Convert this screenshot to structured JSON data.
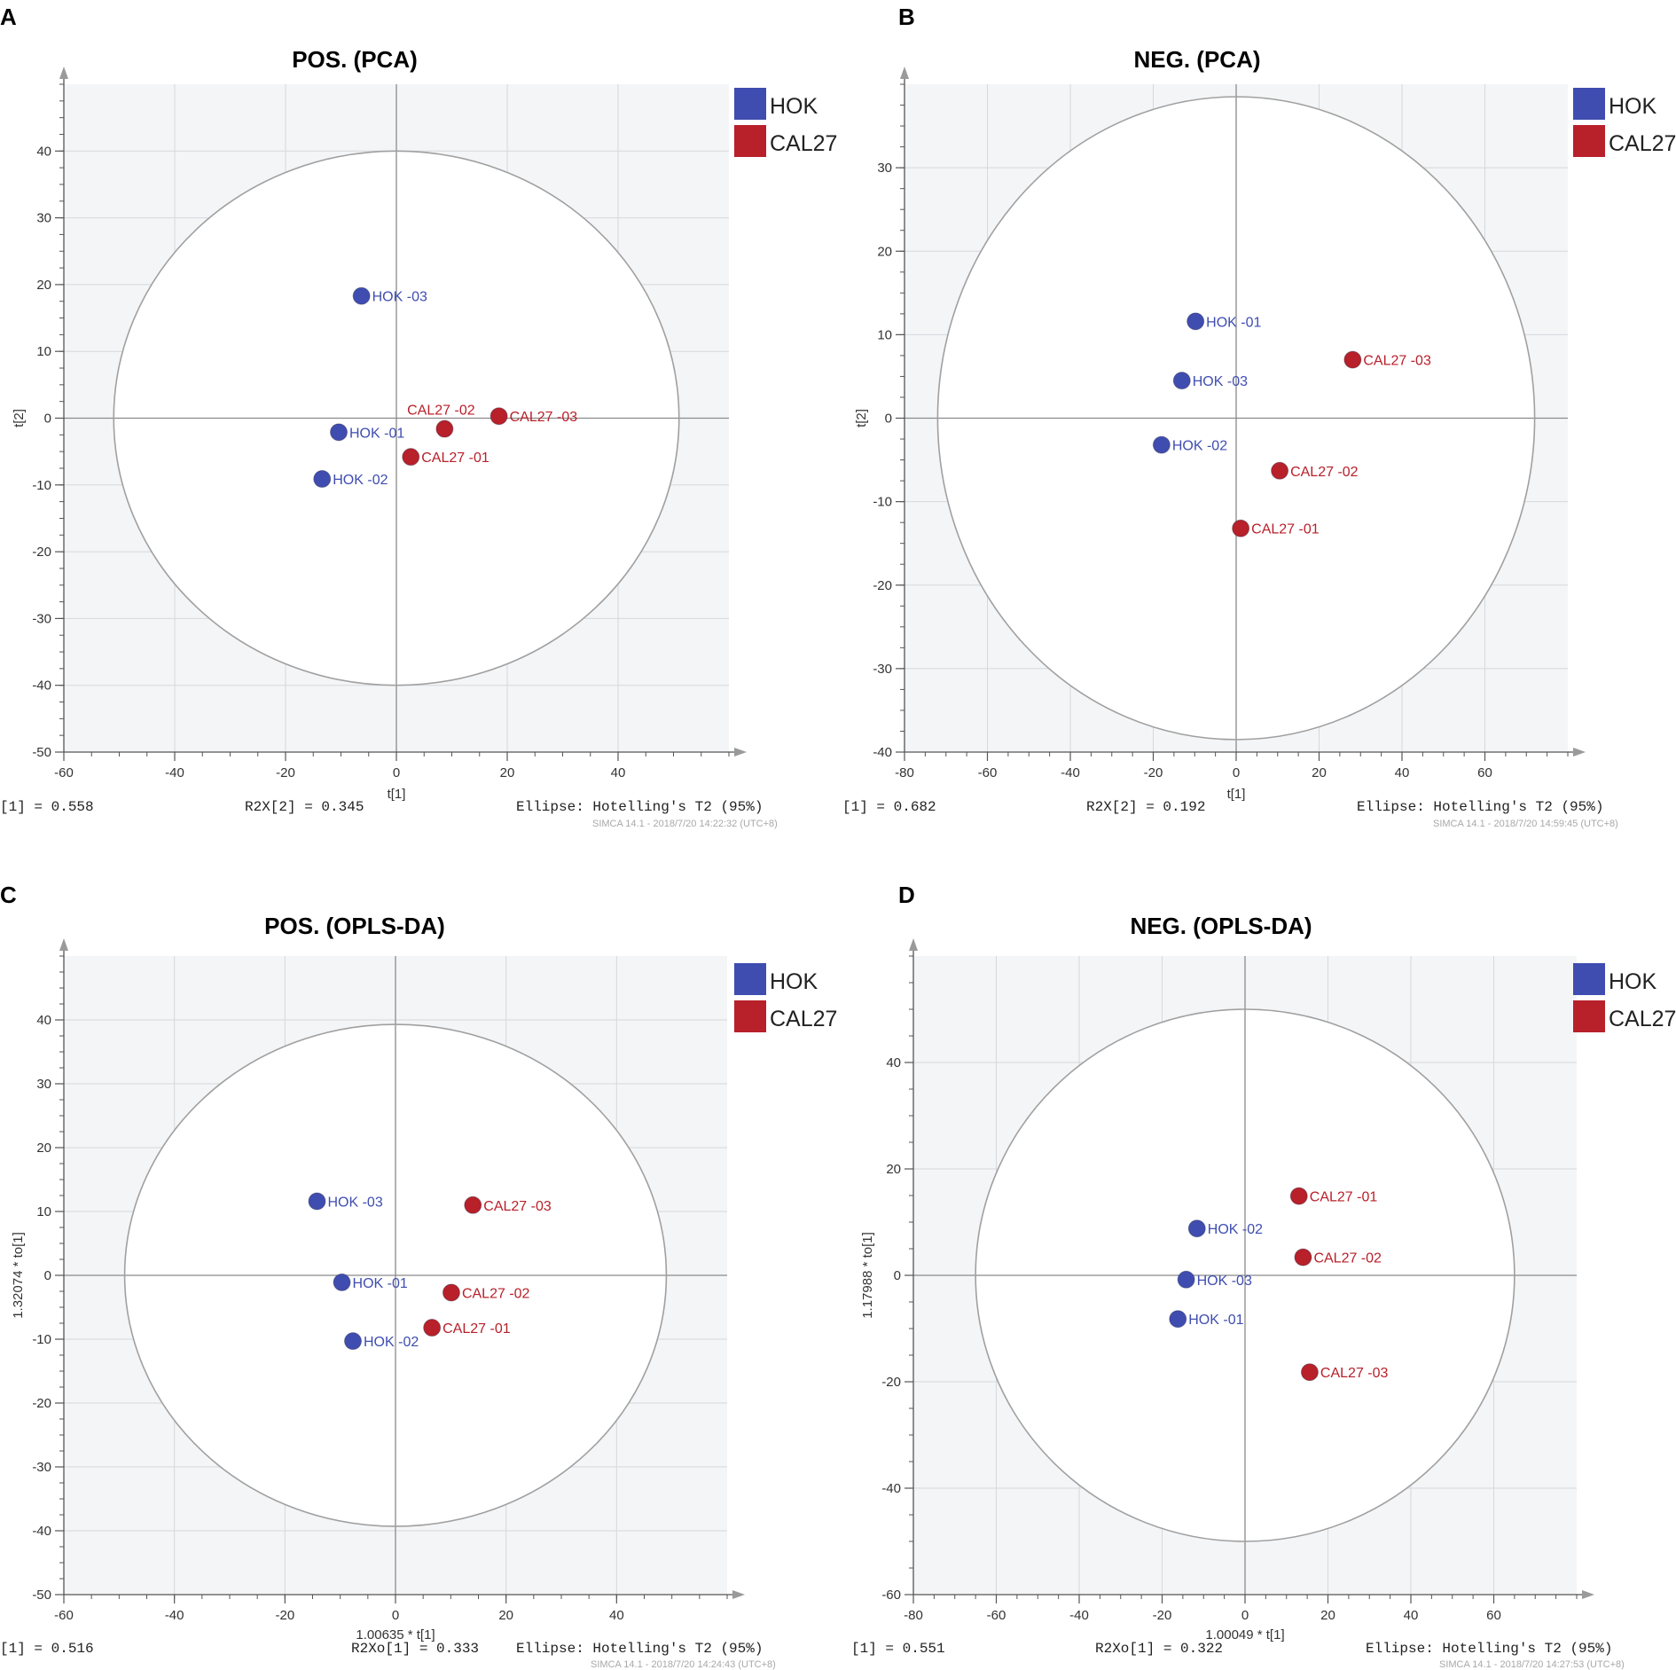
{
  "colors": {
    "hok": "#3f4db0",
    "cal27": "#b8202a",
    "plot_bg": "#f4f5f7",
    "grid": "#d5d8dd",
    "ellipse": "#a0a0a0",
    "axis": "#555555"
  },
  "chart_data": [
    {
      "type": "scatter",
      "panel_label": "A",
      "title": "POS. (PCA)",
      "xlabel": "t[1]",
      "ylabel": "t[2]",
      "xlim": [
        -60,
        60
      ],
      "ylim": [
        -50,
        50
      ],
      "xticks": [
        -60,
        -40,
        -20,
        0,
        20,
        40
      ],
      "yticks": [
        -50,
        -40,
        -30,
        -20,
        -10,
        0,
        10,
        20,
        30,
        40
      ],
      "ellipse": {
        "rx": 51,
        "ry": 40
      },
      "legend": [
        {
          "label": "HOK",
          "group": "hok"
        },
        {
          "label": "CAL27",
          "group": "cal27"
        }
      ],
      "points": [
        {
          "label": "HOK -03",
          "group": "hok",
          "x": -6.3,
          "y": 18.3
        },
        {
          "label": "HOK -01",
          "group": "hok",
          "x": -10.4,
          "y": -2.1
        },
        {
          "label": "HOK -02",
          "group": "hok",
          "x": -13.4,
          "y": -9.1
        },
        {
          "label": "CAL27 -02",
          "group": "cal27",
          "x": 8.7,
          "y": -1.6,
          "label_pos": "above"
        },
        {
          "label": "CAL27 -03",
          "group": "cal27",
          "x": 18.5,
          "y": 0.3
        },
        {
          "label": "CAL27 -01",
          "group": "cal27",
          "x": 2.6,
          "y": -5.8
        }
      ],
      "footer": {
        "left": "[1] = 0.558",
        "middle": "R2X[2] = 0.345",
        "right": "Ellipse: Hotelling's T2 (95%)",
        "stamp": "SIMCA 14.1 - 2018/7/20 14:22:32 (UTC+8)"
      }
    },
    {
      "type": "scatter",
      "panel_label": "B",
      "title": "NEG. (PCA)",
      "xlabel": "t[1]",
      "ylabel": "t[2]",
      "xlim": [
        -80,
        80
      ],
      "ylim": [
        -40,
        40
      ],
      "xticks": [
        -80,
        -60,
        -40,
        -20,
        0,
        20,
        40,
        60
      ],
      "yticks": [
        -40,
        -30,
        -20,
        -10,
        0,
        10,
        20,
        30
      ],
      "ellipse": {
        "rx": 72,
        "ry": 38.5
      },
      "legend": [
        {
          "label": "HOK",
          "group": "hok"
        },
        {
          "label": "CAL27",
          "group": "cal27"
        }
      ],
      "points": [
        {
          "label": "HOK -01",
          "group": "hok",
          "x": -9.8,
          "y": 11.6
        },
        {
          "label": "HOK -03",
          "group": "hok",
          "x": -13.1,
          "y": 4.5
        },
        {
          "label": "HOK -02",
          "group": "hok",
          "x": -18.0,
          "y": -3.2
        },
        {
          "label": "CAL27 -03",
          "group": "cal27",
          "x": 28.1,
          "y": 7.0
        },
        {
          "label": "CAL27 -02",
          "group": "cal27",
          "x": 10.5,
          "y": -6.3
        },
        {
          "label": "CAL27 -01",
          "group": "cal27",
          "x": 1.1,
          "y": -13.2
        }
      ],
      "footer": {
        "left": "[1] = 0.682",
        "middle": "R2X[2] = 0.192",
        "right": "Ellipse: Hotelling's T2 (95%)",
        "stamp": "SIMCA 14.1 - 2018/7/20 14:59:45 (UTC+8)"
      }
    },
    {
      "type": "scatter",
      "panel_label": "C",
      "title": "POS. (OPLS-DA)",
      "xlabel": "1.00635 * t[1]",
      "ylabel": "1.32074 * to[1]",
      "xlim": [
        -60,
        60
      ],
      "ylim": [
        -50,
        50
      ],
      "xticks": [
        -60,
        -40,
        -20,
        0,
        20,
        40
      ],
      "yticks": [
        -50,
        -40,
        -30,
        -20,
        -10,
        0,
        10,
        20,
        30,
        40
      ],
      "ellipse": {
        "rx": 49,
        "ry": 39.3
      },
      "legend": [
        {
          "label": "HOK",
          "group": "hok"
        },
        {
          "label": "CAL27",
          "group": "cal27"
        }
      ],
      "points": [
        {
          "label": "HOK -03",
          "group": "hok",
          "x": -14.2,
          "y": 11.6
        },
        {
          "label": "HOK -01",
          "group": "hok",
          "x": -9.7,
          "y": -1.1
        },
        {
          "label": "HOK -02",
          "group": "hok",
          "x": -7.7,
          "y": -10.3
        },
        {
          "label": "CAL27 -03",
          "group": "cal27",
          "x": 14.0,
          "y": 11.0
        },
        {
          "label": "CAL27 -02",
          "group": "cal27",
          "x": 10.1,
          "y": -2.7
        },
        {
          "label": "CAL27 -01",
          "group": "cal27",
          "x": 6.6,
          "y": -8.2
        }
      ],
      "footer": {
        "left": "[1] = 0.516",
        "middle": "R2Xo[1] = 0.333",
        "right": "Ellipse: Hotelling's T2 (95%)",
        "stamp": "SIMCA 14.1 - 2018/7/20 14:24:43 (UTC+8)"
      }
    },
    {
      "type": "scatter",
      "panel_label": "D",
      "title": "NEG. (OPLS-DA)",
      "xlabel": "1.00049 * t[1]",
      "ylabel": "1.17988 * to[1]",
      "xlim": [
        -80,
        80
      ],
      "ylim": [
        -60,
        60
      ],
      "xticks": [
        -80,
        -60,
        -40,
        -20,
        0,
        20,
        40,
        60
      ],
      "yticks": [
        -60,
        -40,
        -20,
        0,
        20,
        40
      ],
      "ellipse": {
        "rx": 65,
        "ry": 50
      },
      "legend": [
        {
          "label": "HOK",
          "group": "hok"
        },
        {
          "label": "CAL27",
          "group": "cal27"
        }
      ],
      "points": [
        {
          "label": "CAL27 -01",
          "group": "cal27",
          "x": 13.0,
          "y": 14.9
        },
        {
          "label": "HOK -02",
          "group": "hok",
          "x": -11.6,
          "y": 8.8
        },
        {
          "label": "CAL27 -02",
          "group": "cal27",
          "x": 14.0,
          "y": 3.4
        },
        {
          "label": "HOK -03",
          "group": "hok",
          "x": -14.2,
          "y": -0.8
        },
        {
          "label": "HOK -01",
          "group": "hok",
          "x": -16.2,
          "y": -8.2
        },
        {
          "label": "CAL27 -03",
          "group": "cal27",
          "x": 15.6,
          "y": -18.2
        }
      ],
      "footer": {
        "left": "[1] = 0.551",
        "middle": "R2Xo[1] = 0.322",
        "right": "Ellipse: Hotelling's T2 (95%)",
        "stamp": "SIMCA 14.1 - 2018/7/20 14:27:53 (UTC+8)"
      }
    }
  ]
}
